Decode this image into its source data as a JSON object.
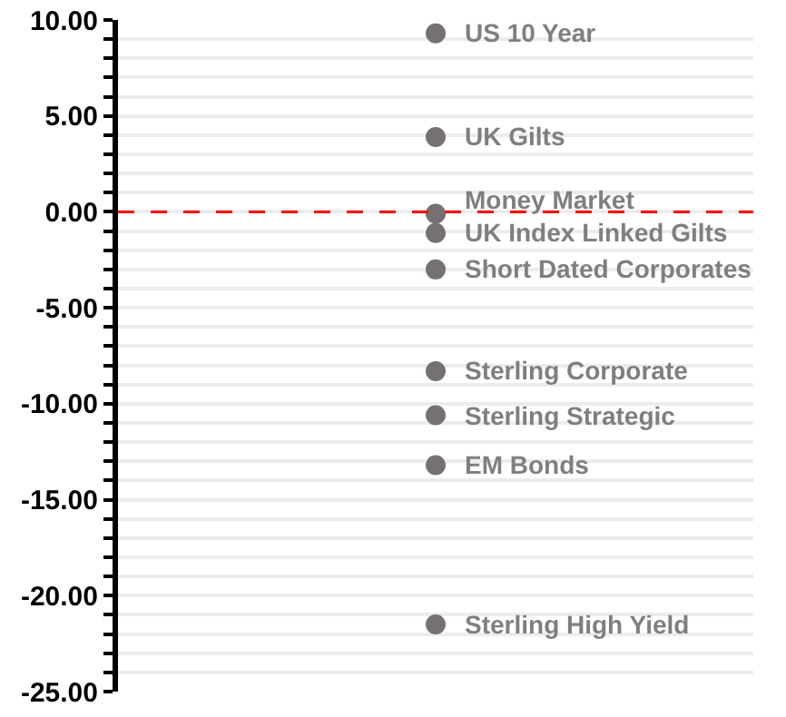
{
  "chart_data": {
    "type": "scatter",
    "categories": [
      null
    ],
    "tick_labels": "y",
    "marker": "circle",
    "grid": "y",
    "legend": false,
    "ylim": [
      -25,
      10
    ],
    "yticks": [
      {
        "value": -25,
        "label": "-25.00"
      },
      {
        "value": -24,
        "label": null
      },
      {
        "value": -23,
        "label": null
      },
      {
        "value": -22,
        "label": null
      },
      {
        "value": -21,
        "label": null
      },
      {
        "value": -20,
        "label": "-20.00"
      },
      {
        "value": -19,
        "label": null
      },
      {
        "value": -18,
        "label": null
      },
      {
        "value": -17,
        "label": null
      },
      {
        "value": -16,
        "label": null
      },
      {
        "value": -15,
        "label": "-15.00"
      },
      {
        "value": -14,
        "label": null
      },
      {
        "value": -13,
        "label": null
      },
      {
        "value": -12,
        "label": null
      },
      {
        "value": -11,
        "label": null
      },
      {
        "value": -10,
        "label": "-10.00"
      },
      {
        "value": -9,
        "label": null
      },
      {
        "value": -8,
        "label": null
      },
      {
        "value": -7,
        "label": null
      },
      {
        "value": -6,
        "label": null
      },
      {
        "value": -5,
        "label": "-5.00"
      },
      {
        "value": -4,
        "label": null
      },
      {
        "value": -3,
        "label": null
      },
      {
        "value": -2,
        "label": null
      },
      {
        "value": -1,
        "label": null
      },
      {
        "value": 0,
        "label": "0.00"
      },
      {
        "value": 1,
        "label": null
      },
      {
        "value": 2,
        "label": null
      },
      {
        "value": 3,
        "label": null
      },
      {
        "value": 4,
        "label": null
      },
      {
        "value": 5,
        "label": "5.00"
      },
      {
        "value": 6,
        "label": null
      },
      {
        "value": 7,
        "label": null
      },
      {
        "value": 8,
        "label": null
      },
      {
        "value": 9,
        "label": null
      },
      {
        "value": 10,
        "label": "10.00"
      }
    ],
    "ref_lines": [
      {
        "axis": "y",
        "value": 0,
        "color": "#ff0000",
        "line_style": "dashed"
      }
    ],
    "series": [
      {
        "name": "US 10 Year",
        "color": "#767171",
        "values": [
          9.3
        ]
      },
      {
        "name": "UK Gilts",
        "color": "#767171",
        "values": [
          3.9
        ]
      },
      {
        "name": "Money Market",
        "color": "#767171",
        "values": [
          -0.1
        ]
      },
      {
        "name": "UK Index Linked Gilts",
        "color": "#767171",
        "values": [
          -1.1
        ]
      },
      {
        "name": "Short Dated Corporates",
        "color": "#767171",
        "values": [
          -3.0
        ]
      },
      {
        "name": "Sterling Corporate",
        "color": "#767171",
        "values": [
          -8.3
        ]
      },
      {
        "name": "Sterling Strategic",
        "color": "#767171",
        "values": [
          -10.6
        ]
      },
      {
        "name": "EM Bonds",
        "color": "#767171",
        "values": [
          -13.2
        ]
      },
      {
        "name": "Sterling High Yield",
        "color": "#767171",
        "values": [
          -21.5
        ]
      }
    ]
  }
}
